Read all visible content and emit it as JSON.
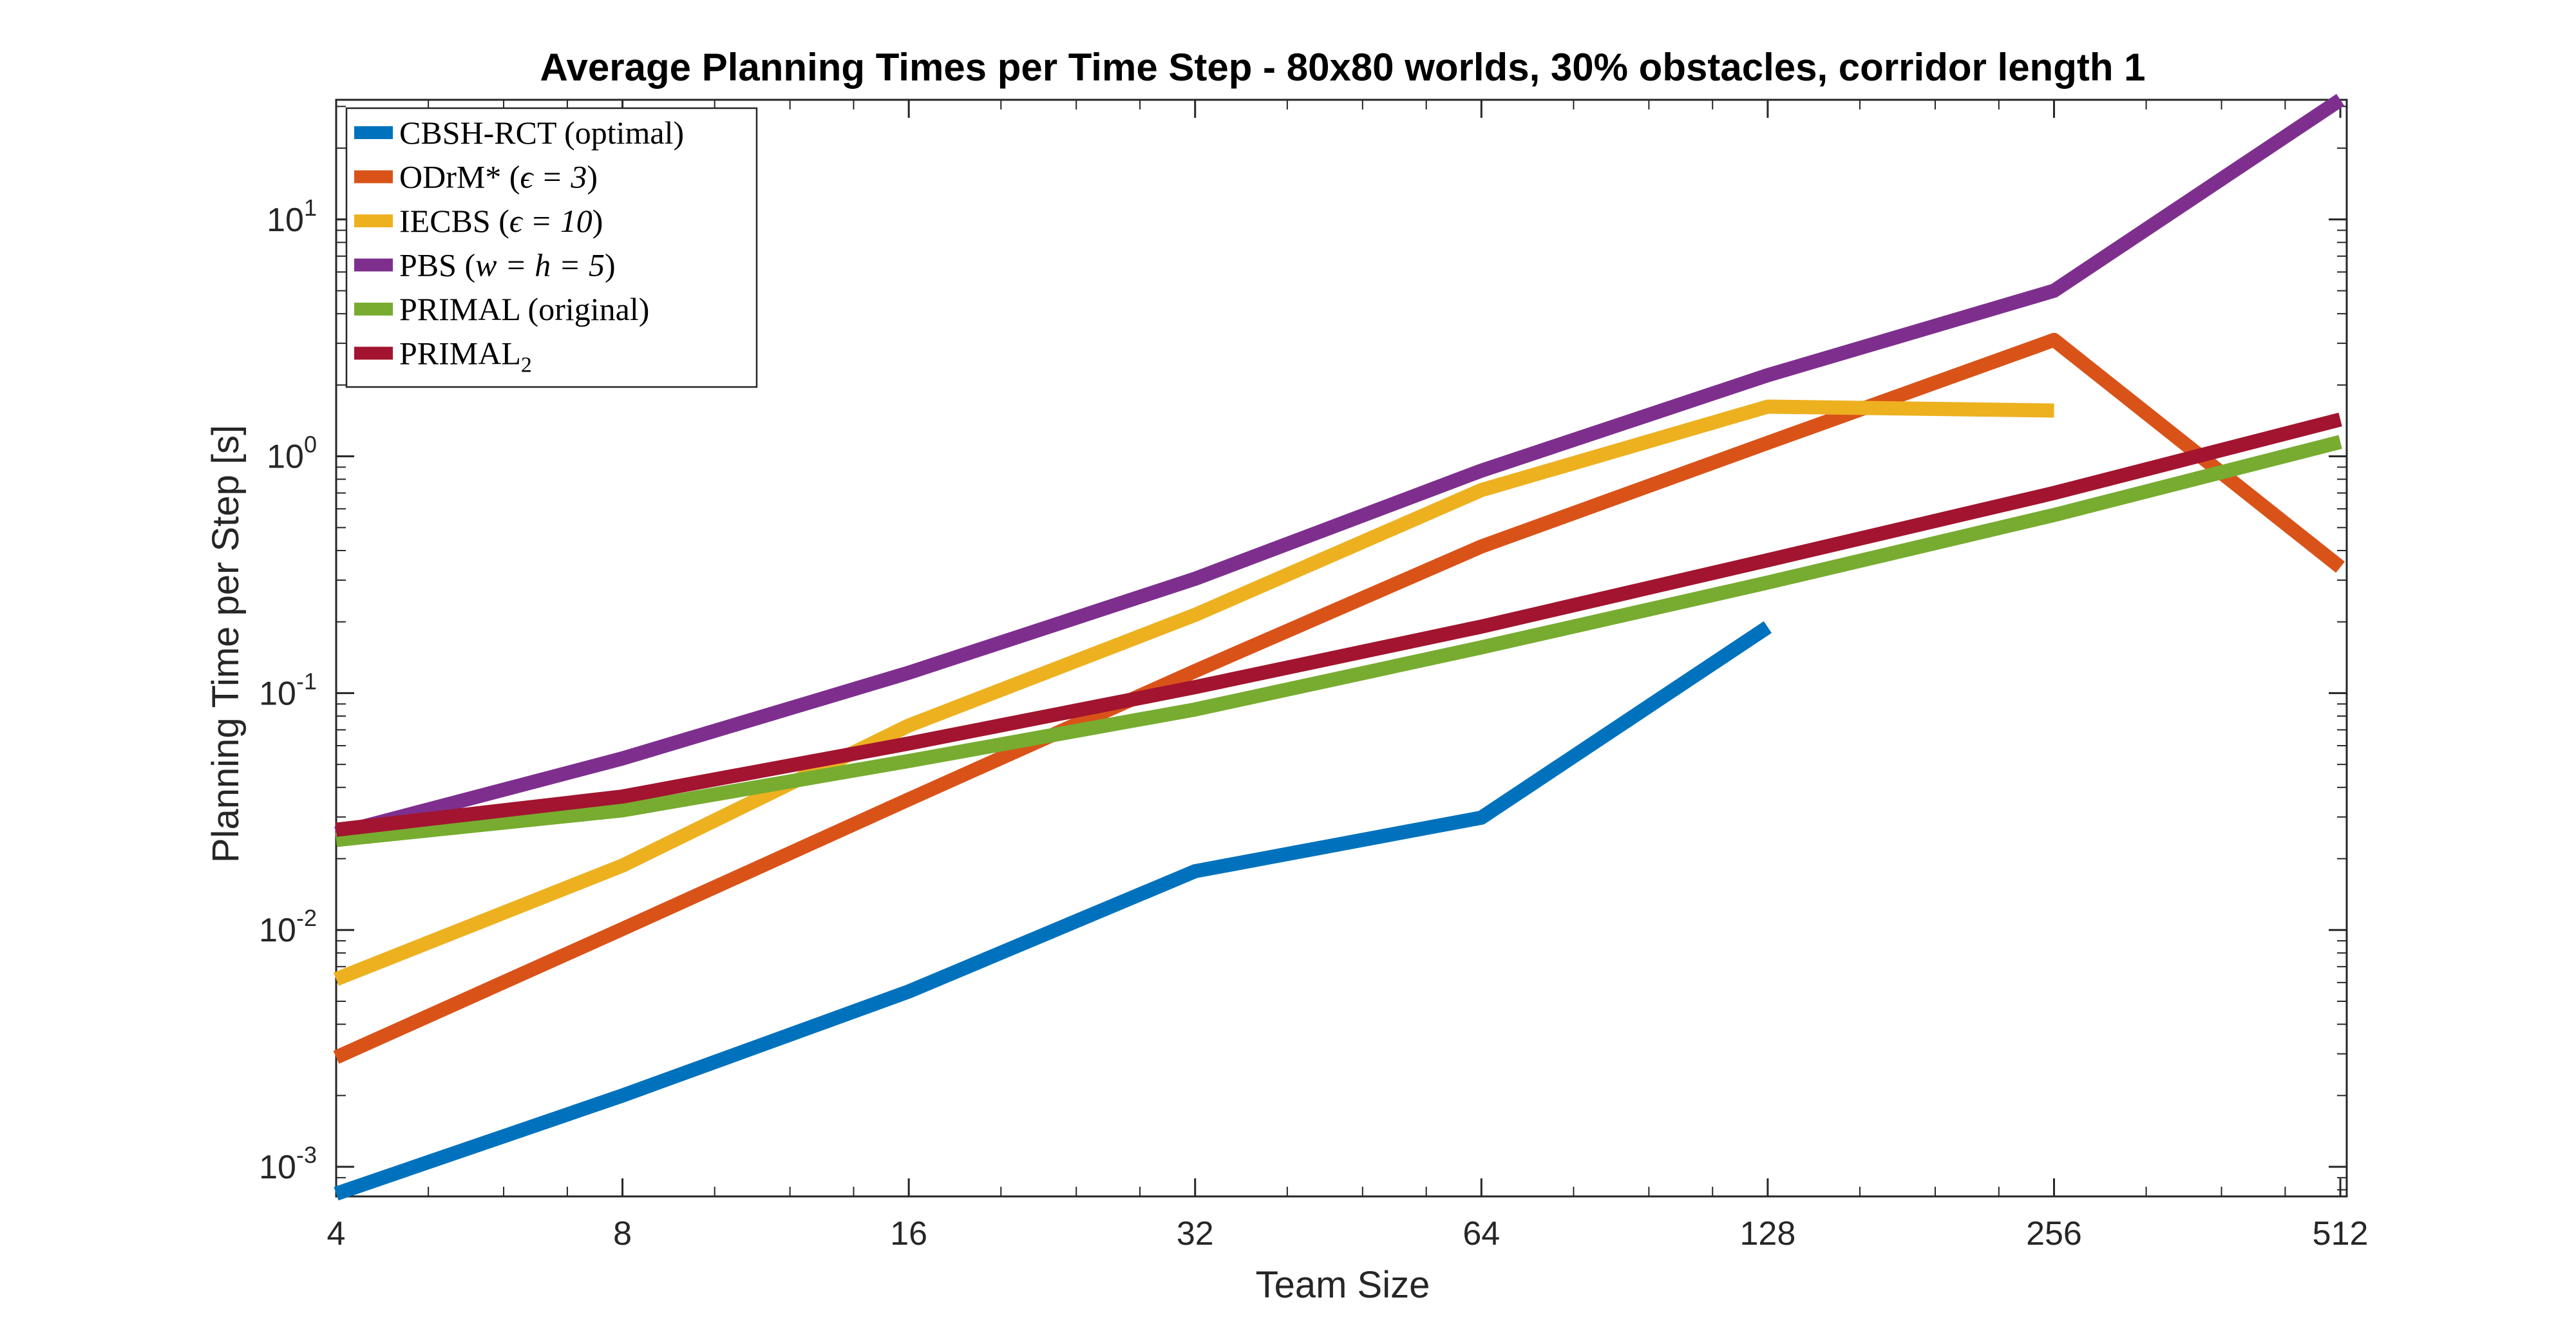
{
  "chart_data": {
    "type": "line",
    "title": "Average Planning Times per Time Step - 80x80 worlds, 30% obstacles, corridor length 1",
    "xlabel": "Team Size",
    "ylabel": "Planning Time per Step [s]",
    "xscale": "log2",
    "yscale": "log10",
    "xlim": [
      4,
      520
    ],
    "ylim": [
      0.00075,
      32
    ],
    "xticks": [
      4,
      8,
      16,
      32,
      64,
      128,
      256,
      512
    ],
    "xtick_labels": [
      "4",
      "8",
      "16",
      "32",
      "64",
      "128",
      "256",
      "512"
    ],
    "yticks": [
      0.001,
      0.01,
      0.1,
      1,
      10
    ],
    "ytick_labels": [
      {
        "base": "10",
        "exp": "-3"
      },
      {
        "base": "10",
        "exp": "-2"
      },
      {
        "base": "10",
        "exp": "-1"
      },
      {
        "base": "10",
        "exp": "0"
      },
      {
        "base": "10",
        "exp": "1"
      }
    ],
    "grid": false,
    "legend_position": "top-left",
    "series": [
      {
        "name": "CBSH-RCT (optimal)",
        "color": "#0072BD",
        "x": [
          4,
          8,
          16,
          32,
          64,
          128
        ],
        "y": [
          0.00077,
          0.002,
          0.0055,
          0.0177,
          0.0298,
          0.19
        ]
      },
      {
        "name": "ODrM* (ε = 3)",
        "color": "#D95319",
        "x": [
          4,
          8,
          16,
          32,
          64,
          128,
          256,
          512
        ],
        "y": [
          0.0029,
          0.0101,
          0.0356,
          0.124,
          0.416,
          1.14,
          3.1,
          0.34
        ]
      },
      {
        "name": "IECBS (ε = 10)",
        "color": "#EDB120",
        "x": [
          4,
          8,
          16,
          32,
          64,
          128,
          256
        ],
        "y": [
          0.0062,
          0.0187,
          0.073,
          0.214,
          0.72,
          1.62,
          1.56
        ]
      },
      {
        "name": "PBS (w = h = 5)",
        "color": "#7E2F8E",
        "x": [
          4,
          8,
          16,
          32,
          64,
          128,
          256,
          512
        ],
        "y": [
          0.0255,
          0.053,
          0.122,
          0.304,
          0.87,
          2.2,
          5.0,
          32
        ]
      },
      {
        "name": "PRIMAL (original)",
        "color": "#77AC30",
        "x": [
          4,
          8,
          16,
          32,
          64,
          128,
          256,
          512
        ],
        "y": [
          0.024,
          0.032,
          0.0517,
          0.0853,
          0.156,
          0.293,
          0.565,
          1.15
        ]
      },
      {
        "name": "PRIMAL2",
        "color": "#A2142F",
        "x": [
          4,
          8,
          16,
          32,
          64,
          128,
          256,
          512
        ],
        "y": [
          0.0265,
          0.0366,
          0.0613,
          0.106,
          0.191,
          0.364,
          0.7,
          1.43
        ]
      }
    ],
    "legend_entries": [
      {
        "text": "CBSH-RCT (optimal)"
      },
      {
        "pre": "ODrM* (",
        "math": "ϵ = 3",
        "post": ")"
      },
      {
        "pre": "IECBS (",
        "math": "ϵ = 10",
        "post": ")"
      },
      {
        "pre": "PBS (",
        "math": "w = h = 5",
        "post": ")"
      },
      {
        "text": "PRIMAL (original)"
      },
      {
        "pre": "PRIMAL",
        "sub": "2"
      }
    ]
  }
}
